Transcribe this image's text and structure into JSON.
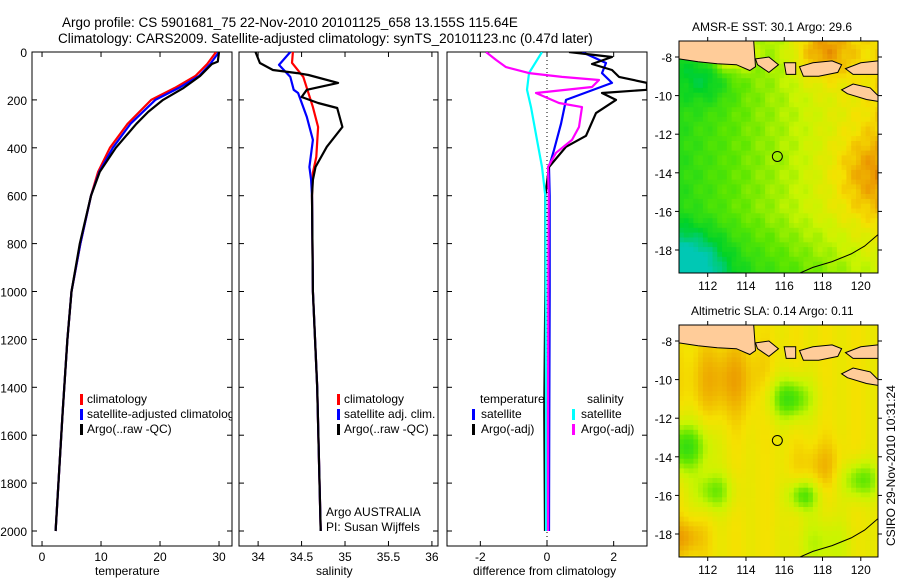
{
  "title": {
    "line1": "Argo profile: CS 5901681_75 22-Nov-2010 20101125_658 13.155S 115.64E",
    "line2": "Climatology: CARS2009. Satellite-adjusted climatology: synTS_20101123.nc (0.47d later)"
  },
  "footer_stamp": "CSIRO 29-Nov-2010 10:31:24",
  "colors": {
    "red": "#ff0000",
    "blue": "#0000ff",
    "black": "#000000",
    "cyan": "#00ffff",
    "magenta": "#ff00ff",
    "land": "#ffcc99"
  },
  "chart_data": [
    {
      "type": "line",
      "panel": "temperature",
      "xlabel": "temperature",
      "ylabel": "",
      "xlim": [
        -1.7,
        32.2
      ],
      "ylim": [
        2000,
        0
      ],
      "xticks": [
        "0",
        "10",
        "20",
        "30"
      ],
      "xtick_values": [
        0,
        10,
        20,
        30
      ],
      "yticks": [
        "0",
        "200",
        "400",
        "600",
        "800",
        "1000",
        "1200",
        "1400",
        "1600",
        "1800",
        "2000"
      ],
      "ytick_values": [
        0,
        200,
        400,
        600,
        800,
        1000,
        1200,
        1400,
        1600,
        1800,
        2000
      ],
      "legend": [
        "climatology",
        "satellite-adjusted climatology",
        "Argo(..raw -QC)"
      ],
      "series": [
        {
          "name": "climatology",
          "color": "red",
          "depth": [
            0,
            50,
            100,
            150,
            200,
            300,
            400,
            500,
            600,
            800,
            1000,
            1200,
            1500,
            2000
          ],
          "values": [
            29.5,
            28,
            26,
            22.5,
            18.5,
            14.5,
            11.5,
            9.5,
            8.3,
            6.5,
            5,
            4.3,
            3.5,
            2.3
          ]
        },
        {
          "name": "satellite-adjusted climatology",
          "color": "blue",
          "depth": [
            0,
            50,
            100,
            150,
            200,
            300,
            400,
            500,
            600,
            800,
            1000,
            1200,
            1500,
            2000
          ],
          "values": [
            30,
            28.5,
            26.6,
            23.2,
            19.2,
            15,
            12,
            9.7,
            8.3,
            6.5,
            5,
            4.3,
            3.5,
            2.3
          ]
        },
        {
          "name": "Argo(..raw -QC)",
          "color": "black",
          "depth": [
            0,
            40,
            50,
            100,
            150,
            200,
            250,
            300,
            400,
            500,
            600,
            800,
            1000,
            1200,
            1500,
            2000
          ],
          "values": [
            30,
            29.8,
            28.8,
            26.8,
            24,
            20.5,
            18,
            16,
            12.5,
            9.8,
            8.3,
            6.4,
            5,
            4.3,
            3.5,
            2.3
          ]
        }
      ]
    },
    {
      "type": "line",
      "panel": "salinity",
      "xlabel": "salinity",
      "xlim": [
        33.78,
        36.07
      ],
      "ylim": [
        2000,
        0
      ],
      "xticks": [
        "34",
        "34.5",
        "35",
        "35.5",
        "36"
      ],
      "xtick_values": [
        34,
        34.5,
        35,
        35.5,
        36
      ],
      "legend": [
        "climatology",
        "satellite adj. clim.",
        "Argo(..raw -QC)"
      ],
      "annotation": [
        "Argo AUSTRALIA",
        "PI: Susan Wijffels"
      ],
      "series": [
        {
          "name": "climatology",
          "color": "red",
          "depth": [
            0,
            45,
            104,
            230,
            313,
            438,
            505,
            600,
            1000,
            1400,
            2000
          ],
          "values": [
            34.4,
            34.39,
            34.52,
            34.63,
            34.69,
            34.67,
            34.63,
            34.62,
            34.63,
            34.68,
            34.72
          ]
        },
        {
          "name": "satellite adj. clim.",
          "color": "blue",
          "depth": [
            0,
            54,
            104,
            158,
            171,
            271,
            367,
            480,
            534,
            600,
            1000,
            1400,
            2000
          ],
          "values": [
            34.37,
            34.24,
            34.37,
            34.41,
            34.46,
            34.56,
            34.63,
            34.59,
            34.61,
            34.62,
            34.63,
            34.68,
            34.72
          ]
        },
        {
          "name": "Argo(..raw -QC)",
          "color": "black",
          "depth": [
            0,
            46,
            75,
            88,
            96,
            129,
            158,
            188,
            213,
            234,
            313,
            396,
            480,
            534,
            600,
            1000,
            1400,
            2000
          ],
          "values": [
            33.97,
            34.02,
            34.17,
            34.45,
            34.58,
            34.92,
            34.56,
            34.5,
            34.69,
            34.91,
            34.97,
            34.79,
            34.66,
            34.63,
            34.62,
            34.63,
            34.68,
            34.72
          ]
        }
      ]
    },
    {
      "type": "line",
      "panel": "difference",
      "xlabel": "difference from climatology",
      "xlim": [
        -3.0,
        3.0
      ],
      "ylim": [
        2000,
        0
      ],
      "xticks": [
        "-2",
        "0",
        "2"
      ],
      "xtick_values": [
        -2,
        0,
        2
      ],
      "legend_headers": [
        "temperature",
        "salinity"
      ],
      "legend": [
        "satellite",
        "Argo(-adj)",
        "satellite",
        "Argo(-adj)"
      ],
      "series": [
        {
          "name": "temperature satellite",
          "color": "blue",
          "depth": [
            0,
            46,
            88,
            129,
            200,
            300,
            409,
            480,
            600,
            1000,
            1500,
            2000
          ],
          "values": [
            1.05,
            1.77,
            1.65,
            1.95,
            0.57,
            0.42,
            0.21,
            0.06,
            0.08,
            0.08,
            0.07,
            0.06
          ]
        },
        {
          "name": "temperature Argo(-adj)",
          "color": "black",
          "depth": [
            0,
            21,
            50,
            75,
            104,
            129,
            158,
            171,
            200,
            255,
            350,
            396,
            480,
            600,
            1000,
            1500,
            2000
          ],
          "values": [
            0.66,
            1.95,
            1.35,
            1.95,
            2.16,
            3.0,
            3.0,
            1.65,
            2.07,
            1.47,
            1.17,
            0.57,
            0.06,
            -0.05,
            -0.05,
            -0.08,
            -0.06
          ]
        },
        {
          "name": "salinity satellite",
          "color": "cyan",
          "depth": [
            0,
            88,
            158,
            230,
            367,
            480,
            600,
            1000,
            1500,
            2000
          ],
          "values": [
            -0.15,
            -0.54,
            -0.6,
            -0.48,
            -0.3,
            -0.15,
            -0.05,
            -0.04,
            -0.03,
            -0.03
          ]
        },
        {
          "name": "salinity Argo(-adj)",
          "color": "magenta",
          "depth": [
            0,
            33,
            63,
            88,
            104,
            117,
            146,
            171,
            213,
            230,
            313,
            367,
            421,
            480,
            600,
            1000,
            1500,
            2000
          ],
          "values": [
            -1.83,
            -1.53,
            -1.23,
            -0.54,
            0.45,
            1.56,
            1.35,
            -0.33,
            0.36,
            1.05,
            0.96,
            0.75,
            0.27,
            0.03,
            0.05,
            0.04,
            0.03,
            0.03
          ]
        }
      ]
    },
    {
      "type": "heatmap",
      "panel": "sst-map",
      "title": "AMSR-E SST: 30.1 Argo: 29.6",
      "xlim": [
        110.5,
        120.9
      ],
      "ylim": [
        -19.2,
        -7.1
      ],
      "xticks": [
        "112",
        "114",
        "116",
        "118",
        "120"
      ],
      "xtick_values": [
        112,
        114,
        116,
        118,
        120
      ],
      "yticks": [
        "-8",
        "-10",
        "-12",
        "-14",
        "-16",
        "-18"
      ],
      "ytick_values": [
        -8,
        -10,
        -12,
        -14,
        -16,
        -18
      ],
      "marker": {
        "lon": 115.64,
        "lat": -13.155
      }
    },
    {
      "type": "heatmap",
      "panel": "sla-map",
      "title": "Altimetric SLA: 0.14 Argo: 0.11",
      "xlim": [
        110.5,
        120.9
      ],
      "ylim": [
        -19.2,
        -7.1
      ],
      "xticks": [
        "112",
        "114",
        "116",
        "118",
        "120"
      ],
      "xtick_values": [
        112,
        114,
        116,
        118,
        120
      ],
      "yticks": [
        "-8",
        "-10",
        "-12",
        "-14",
        "-16",
        "-18"
      ],
      "ytick_values": [
        -8,
        -10,
        -12,
        -14,
        -16,
        -18
      ],
      "marker": {
        "lon": 115.64,
        "lat": -13.155
      }
    }
  ]
}
